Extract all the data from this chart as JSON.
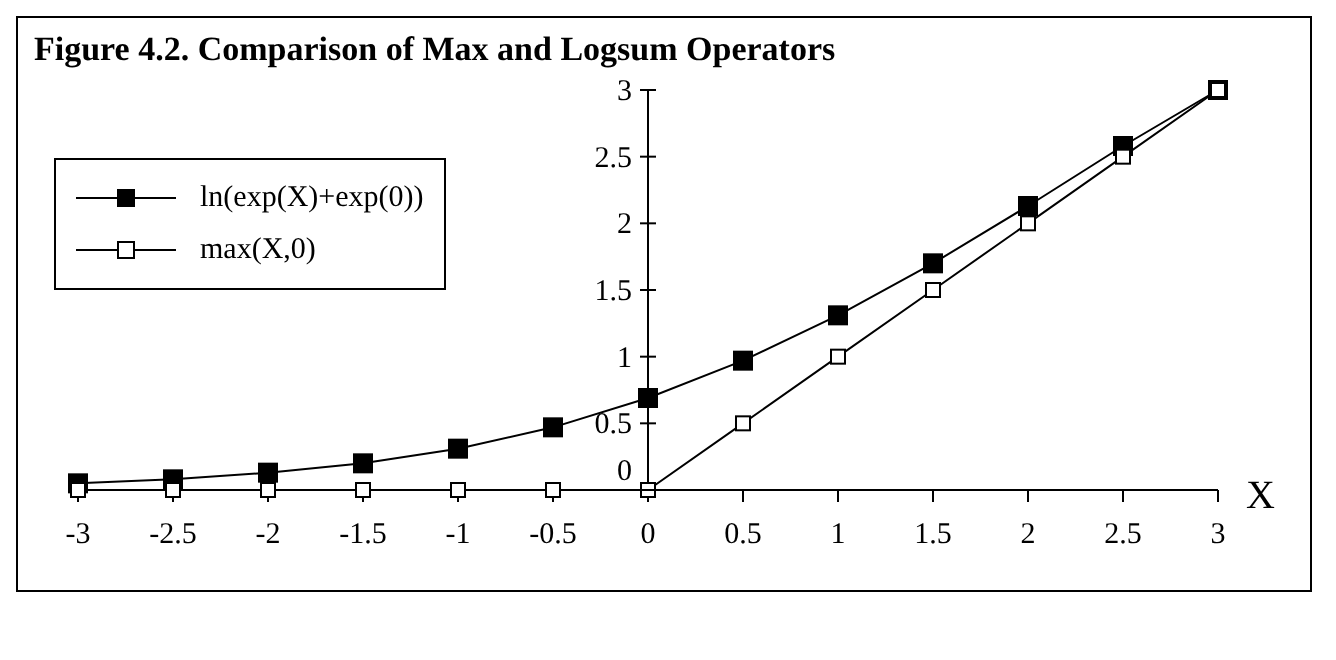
{
  "chart_data": {
    "type": "line",
    "title": "Figure 4.2. Comparison of Max and Logsum Operators",
    "xlabel": "X",
    "x": [
      -3,
      -2.5,
      -2,
      -1.5,
      -1,
      -0.5,
      0,
      0.5,
      1,
      1.5,
      2,
      2.5,
      3
    ],
    "xlim": [
      -3,
      3
    ],
    "xticks": [
      -3,
      -2.5,
      -2,
      -1.5,
      -1,
      -0.5,
      0,
      0.5,
      1,
      1.5,
      2,
      2.5,
      3
    ],
    "ylim": [
      0,
      3
    ],
    "yticks": [
      0,
      0.5,
      1,
      1.5,
      2,
      2.5,
      3
    ],
    "grid": false,
    "legend": "top left",
    "marker": "square",
    "line_style": "solid",
    "series": [
      {
        "name": "ln(exp(X)+exp(0))",
        "color": "#000000",
        "values": [
          0.05,
          0.08,
          0.13,
          0.2,
          0.31,
          0.47,
          0.69,
          0.97,
          1.31,
          1.7,
          2.13,
          2.58,
          3
        ]
      },
      {
        "name": "max(X,0)",
        "color": "#000000",
        "values": [
          0,
          0,
          0,
          0,
          0,
          0,
          0,
          0.5,
          1,
          1.5,
          2,
          2.5,
          3
        ]
      }
    ]
  }
}
